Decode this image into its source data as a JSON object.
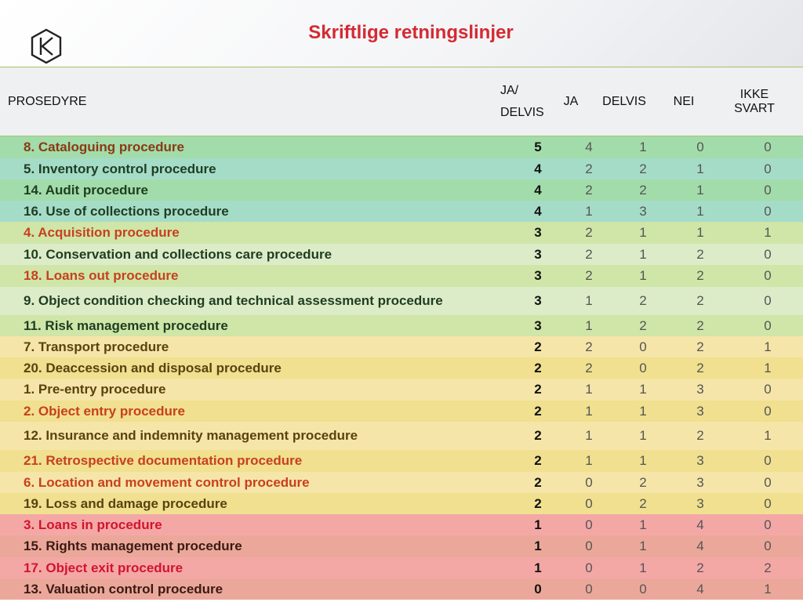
{
  "title": "Skriftlige retningslinjer",
  "logo_icon": "hexagon-k-logo",
  "colors": {
    "title": "#d42a33",
    "text_dark": "#1f3d22",
    "text_brown": "#8a3a14",
    "text_orange": "#c8401e",
    "text_red": "#d2142e",
    "text_dark_yellow": "#5a4210",
    "text_dark_red": "#3a1a14"
  },
  "headers": {
    "procedure": "PROSEDYRE",
    "ja_delvis_line1": "JA/",
    "ja_delvis_line2": "DELVIS",
    "ja": "JA",
    "delvis": "DELVIS",
    "nei": "NEI",
    "ikke_svart": "IKKE SVART"
  },
  "rows": [
    {
      "name": "8. Cataloguing procedure",
      "ja_delvis": "5",
      "ja": "4",
      "delvis": "1",
      "nei": "0",
      "ikke_svart": "0",
      "bg": "#a2dcaa",
      "color": "#8a3a14"
    },
    {
      "name": "5. Inventory control procedure",
      "ja_delvis": "4",
      "ja": "2",
      "delvis": "2",
      "nei": "1",
      "ikke_svart": "0",
      "bg": "#a5dcc8",
      "color": "#1f3d22"
    },
    {
      "name": "14. Audit procedure",
      "ja_delvis": "4",
      "ja": "2",
      "delvis": "2",
      "nei": "1",
      "ikke_svart": "0",
      "bg": "#a2dcaa",
      "color": "#1f3d22"
    },
    {
      "name": "16. Use of collections procedure",
      "ja_delvis": "4",
      "ja": "1",
      "delvis": "3",
      "nei": "1",
      "ikke_svart": "0",
      "bg": "#a5dcc8",
      "color": "#1f3d22"
    },
    {
      "name": "4. Acquisition procedure",
      "ja_delvis": "3",
      "ja": "2",
      "delvis": "1",
      "nei": "1",
      "ikke_svart": "1",
      "bg": "#cfe6a8",
      "color": "#c8401e"
    },
    {
      "name": "10. Conservation and collections care procedure",
      "ja_delvis": "3",
      "ja": "2",
      "delvis": "1",
      "nei": "2",
      "ikke_svart": "0",
      "bg": "#dcecc8",
      "color": "#1f3d22"
    },
    {
      "name": "18. Loans out procedure",
      "ja_delvis": "3",
      "ja": "2",
      "delvis": "1",
      "nei": "2",
      "ikke_svart": "0",
      "bg": "#cfe6a8",
      "color": "#c8401e"
    },
    {
      "name": "9. Object condition checking and technical assessment procedure",
      "ja_delvis": "3",
      "ja": "1",
      "delvis": "2",
      "nei": "2",
      "ikke_svart": "0",
      "bg": "#dcecc8",
      "color": "#1f3d22"
    },
    {
      "name": "11. Risk management procedure",
      "ja_delvis": "3",
      "ja": "1",
      "delvis": "2",
      "nei": "2",
      "ikke_svart": "0",
      "bg": "#cfe6a8",
      "color": "#1f3d22"
    },
    {
      "name": "7. Transport procedure",
      "ja_delvis": "2",
      "ja": "2",
      "delvis": "0",
      "nei": "2",
      "ikke_svart": "1",
      "bg": "#f6e5a8",
      "color": "#5a4210"
    },
    {
      "name": "20. Deaccession and disposal procedure",
      "ja_delvis": "2",
      "ja": "2",
      "delvis": "0",
      "nei": "2",
      "ikke_svart": "1",
      "bg": "#f0e08f",
      "color": "#5a4210"
    },
    {
      "name": "1. Pre-entry procedure",
      "ja_delvis": "2",
      "ja": "1",
      "delvis": "1",
      "nei": "3",
      "ikke_svart": "0",
      "bg": "#f6e5a8",
      "color": "#5a4210"
    },
    {
      "name": "2. Object entry procedure",
      "ja_delvis": "2",
      "ja": "1",
      "delvis": "1",
      "nei": "3",
      "ikke_svart": "0",
      "bg": "#f0e08f",
      "color": "#c8401e"
    },
    {
      "name": "12. Insurance and indemnity management procedure",
      "ja_delvis": "2",
      "ja": "1",
      "delvis": "1",
      "nei": "2",
      "ikke_svart": "1",
      "bg": "#f6e5a8",
      "color": "#5a4210"
    },
    {
      "name": "21. Retrospective documentation procedure",
      "ja_delvis": "2",
      "ja": "1",
      "delvis": "1",
      "nei": "3",
      "ikke_svart": "0",
      "bg": "#f0e08f",
      "color": "#c8401e"
    },
    {
      "name": "6. Location and movement control procedure",
      "ja_delvis": "2",
      "ja": "0",
      "delvis": "2",
      "nei": "3",
      "ikke_svart": "0",
      "bg": "#f6e5a8",
      "color": "#c8401e"
    },
    {
      "name": "19. Loss and damage procedure",
      "ja_delvis": "2",
      "ja": "0",
      "delvis": "2",
      "nei": "3",
      "ikke_svart": "0",
      "bg": "#f0e08f",
      "color": "#5a4210"
    },
    {
      "name": "3. Loans in procedure",
      "ja_delvis": "1",
      "ja": "0",
      "delvis": "1",
      "nei": "4",
      "ikke_svart": "0",
      "bg": "#f4a8a6",
      "color": "#d2142e"
    },
    {
      "name": "15. Rights management procedure",
      "ja_delvis": "1",
      "ja": "0",
      "delvis": "1",
      "nei": "4",
      "ikke_svart": "0",
      "bg": "#eba89a",
      "color": "#3a1a14"
    },
    {
      "name": "17. Object exit procedure",
      "ja_delvis": "1",
      "ja": "0",
      "delvis": "1",
      "nei": "2",
      "ikke_svart": "2",
      "bg": "#f4a8a6",
      "color": "#d2142e"
    },
    {
      "name": "13. Valuation control procedure",
      "ja_delvis": "0",
      "ja": "0",
      "delvis": "0",
      "nei": "4",
      "ikke_svart": "1",
      "bg": "#eba89a",
      "color": "#3a1a14"
    }
  ]
}
